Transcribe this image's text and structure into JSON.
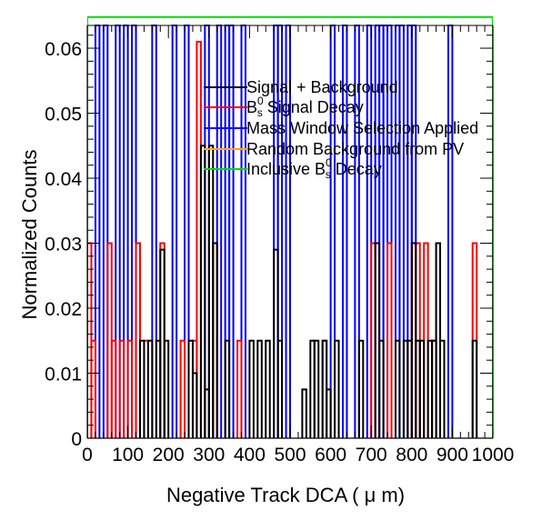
{
  "chart_data": {
    "type": "histogram",
    "xlabel": "Negative Track DCA ( μ m)",
    "ylabel": "Normalized Counts",
    "xlim": [
      0,
      1000
    ],
    "ylim": [
      0,
      0.0635
    ],
    "x_ticks": [
      0,
      100,
      200,
      300,
      400,
      500,
      600,
      700,
      800,
      900,
      1000
    ],
    "y_ticks": [
      0,
      0.01,
      0.02,
      0.03,
      0.04,
      0.05,
      0.06
    ],
    "y_tick_labels": [
      "0",
      "0.01",
      "0.02",
      "0.03",
      "0.04",
      "0.05",
      "0.06"
    ],
    "bin_width": 10,
    "legend_position": "top-right",
    "series": [
      {
        "name": "Signal + Background",
        "color": "#000000",
        "bins": [
          [
            130,
            140,
            0.015
          ],
          [
            150,
            160,
            0.015
          ],
          [
            170,
            180,
            0.015
          ],
          [
            180,
            190,
            0.029
          ],
          [
            190,
            200,
            0.015
          ],
          [
            250,
            260,
            0.015
          ],
          [
            260,
            270,
            0.01
          ],
          [
            280,
            290,
            0.045
          ],
          [
            290,
            300,
            0.0075
          ],
          [
            300,
            310,
            0.045
          ],
          [
            310,
            320,
            0.03
          ],
          [
            340,
            350,
            0.015
          ],
          [
            400,
            410,
            0.015
          ],
          [
            420,
            430,
            0.015
          ],
          [
            440,
            450,
            0.015
          ],
          [
            460,
            470,
            0.029
          ],
          [
            470,
            480,
            0.015
          ],
          [
            530,
            540,
            0.0075
          ],
          [
            550,
            560,
            0.015
          ],
          [
            560,
            570,
            0.015
          ],
          [
            580,
            590,
            0.015
          ],
          [
            590,
            600,
            0.0075
          ],
          [
            610,
            620,
            0.015
          ],
          [
            670,
            680,
            0.015
          ],
          [
            710,
            720,
            0.03
          ],
          [
            720,
            730,
            0.015
          ],
          [
            760,
            770,
            0.015
          ],
          [
            780,
            790,
            0.015
          ],
          [
            790,
            800,
            0.015
          ],
          [
            800,
            810,
            0.03
          ],
          [
            810,
            820,
            0.015
          ],
          [
            820,
            830,
            0.015
          ],
          [
            840,
            850,
            0.015
          ],
          [
            850,
            860,
            0.015
          ],
          [
            860,
            870,
            0.03
          ],
          [
            870,
            880,
            0.015
          ],
          [
            950,
            960,
            0.015
          ]
        ]
      },
      {
        "name": "B_s^0 Signal Decay",
        "color": "#ff0000",
        "bins": [
          [
            0,
            10,
            0.03
          ],
          [
            10,
            20,
            0.015
          ],
          [
            50,
            60,
            0.03
          ],
          [
            60,
            70,
            0.015
          ],
          [
            80,
            90,
            0.015
          ],
          [
            100,
            110,
            0.015
          ],
          [
            120,
            130,
            0.03
          ],
          [
            140,
            150,
            0.015
          ],
          [
            180,
            190,
            0.03
          ],
          [
            230,
            240,
            0.015
          ],
          [
            260,
            270,
            0.015
          ],
          [
            270,
            280,
            0.061
          ],
          [
            310,
            320,
            0.03
          ],
          [
            370,
            380,
            0.015
          ],
          [
            580,
            590,
            0.015
          ],
          [
            700,
            710,
            0.03
          ],
          [
            740,
            750,
            0.03
          ],
          [
            800,
            810,
            0.03
          ],
          [
            810,
            820,
            0.03
          ],
          [
            830,
            840,
            0.03
          ],
          [
            850,
            860,
            0.015
          ],
          [
            860,
            870,
            0.03
          ],
          [
            950,
            960,
            0.03
          ]
        ]
      },
      {
        "name": "Mass Window Selection Applied",
        "color": "#0000ff",
        "bins": [
          [
            20,
            30,
            0.0635
          ],
          [
            40,
            50,
            0.0635
          ],
          [
            70,
            80,
            0.0635
          ],
          [
            90,
            100,
            0.0635
          ],
          [
            110,
            120,
            0.0635
          ],
          [
            160,
            170,
            0.0635
          ],
          [
            210,
            220,
            0.0635
          ],
          [
            240,
            250,
            0.0635
          ],
          [
            290,
            300,
            0.0635
          ],
          [
            320,
            330,
            0.0635
          ],
          [
            340,
            350,
            0.0635
          ],
          [
            350,
            360,
            0.0635
          ],
          [
            380,
            390,
            0.0635
          ],
          [
            460,
            470,
            0.0635
          ],
          [
            470,
            480,
            0.0635
          ],
          [
            490,
            500,
            0.0635
          ],
          [
            600,
            610,
            0.0635
          ],
          [
            630,
            640,
            0.0635
          ],
          [
            660,
            670,
            0.0635
          ],
          [
            690,
            700,
            0.0635
          ],
          [
            710,
            720,
            0.0635
          ],
          [
            720,
            730,
            0.0635
          ],
          [
            730,
            740,
            0.0635
          ],
          [
            740,
            750,
            0.0635
          ],
          [
            760,
            770,
            0.0635
          ],
          [
            770,
            780,
            0.0635
          ],
          [
            790,
            800,
            0.0635
          ],
          [
            800,
            810,
            0.0635
          ],
          [
            890,
            900,
            0.0635
          ]
        ]
      },
      {
        "name": "Random Background from PV",
        "color": "#ffaa00",
        "bins": []
      },
      {
        "name": "Inclusive B_s^0 Decay",
        "color": "#00dd00",
        "bins": [
          [
            0,
            1000,
            0.0648
          ]
        ]
      }
    ]
  },
  "legend": {
    "items": [
      {
        "text": "Signal + Background"
      },
      {
        "text_pre": "B",
        "sup": "0",
        "sub": "s",
        "text_post": " Signal Decay"
      },
      {
        "text": "Mass Window Selection Applied"
      },
      {
        "text": "Random Background from PV"
      },
      {
        "text_pre": "Inclusive B",
        "sup": "0",
        "sub": "s",
        "text_post": " Decay"
      }
    ]
  }
}
